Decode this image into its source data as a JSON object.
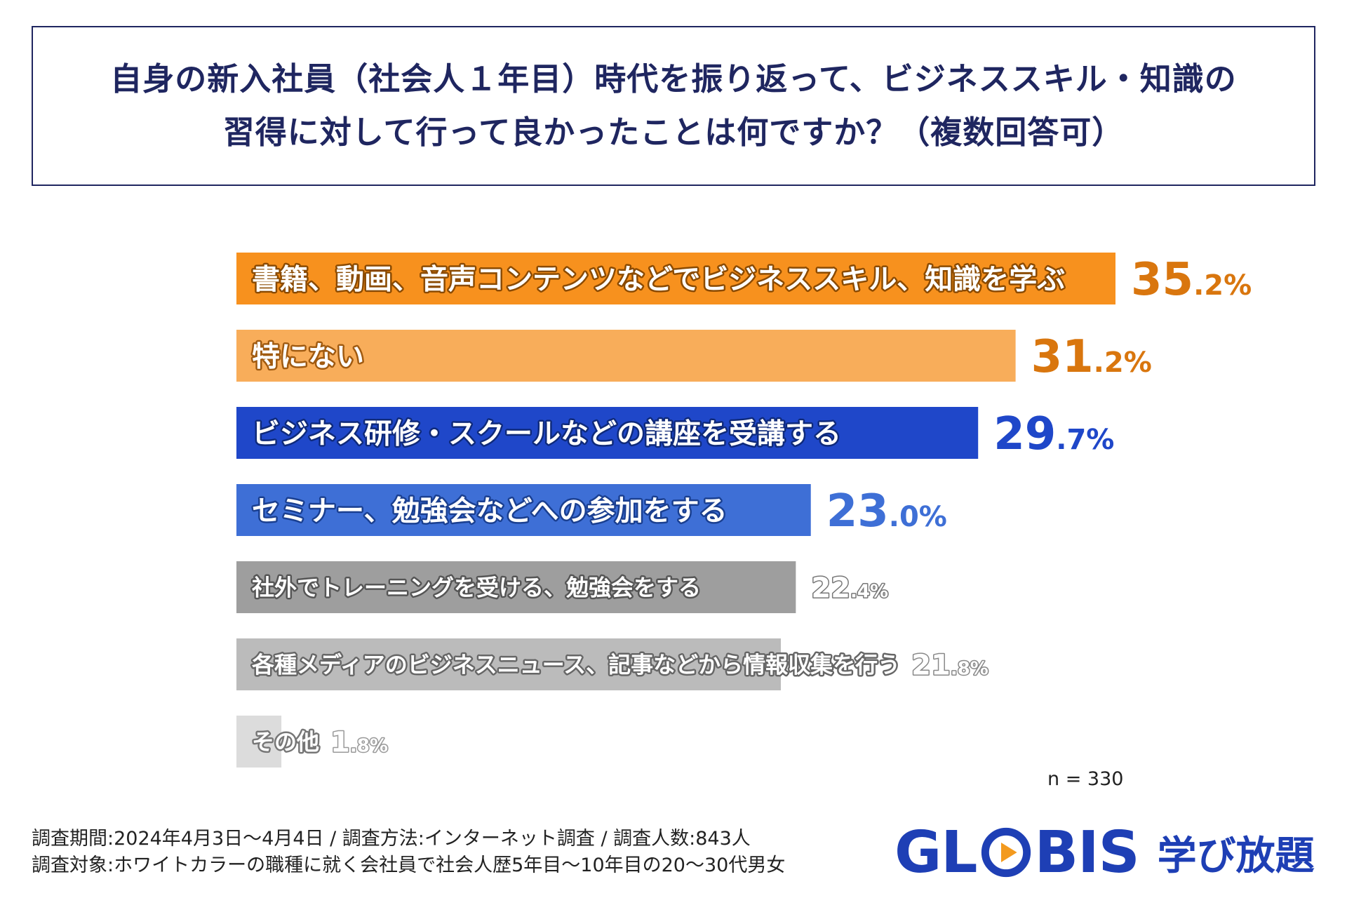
{
  "title": {
    "line1": "自身の新入社員（社会人１年目）時代を振り返って、ビジネススキル・知識の",
    "line2": "習得に対して行って良かったことは何ですか？（複数回答可）"
  },
  "chart_data": {
    "type": "bar",
    "orientation": "horizontal",
    "unit": "%",
    "xlim": [
      0,
      35.2
    ],
    "categories": [
      "書籍、動画、音声コンテンツなどでビジネススキル、知識を学ぶ",
      "特にない",
      "ビジネス研修・スクールなどの講座を受講する",
      "セミナー、勉強会などへの参加をする",
      "社外でトレーニングを受ける、勉強会をする",
      "各種メディアのビジネスニュース、記事などから情報収集を行う",
      "その他"
    ],
    "values": [
      35.2,
      31.2,
      29.7,
      23.0,
      22.4,
      21.8,
      1.8
    ],
    "value_labels": [
      {
        "int": "35",
        "dec": ".2%"
      },
      {
        "int": "31",
        "dec": ".2%"
      },
      {
        "int": "29",
        "dec": ".7%"
      },
      {
        "int": "23",
        "dec": ".0%"
      },
      {
        "int": "22",
        "dec": ".4%"
      },
      {
        "int": "21",
        "dec": ".8%"
      },
      {
        "int": "1",
        "dec": ".8%"
      }
    ],
    "bar_colors": [
      "#f7911e",
      "#f8ad5a",
      "#1f47c9",
      "#3e6fd6",
      "#9e9e9e",
      "#bbbbbb",
      "#dcdcdc"
    ],
    "value_colors": [
      "#d9760e",
      "#d9760e",
      "#1f47c9",
      "#3e6fd6",
      "#bdbdbd",
      "#c9c9c9",
      "#d0d0d0"
    ],
    "n_label": "n = 330"
  },
  "footer": {
    "line1": "調査期間:2024年4月3日〜4月4日 / 調査方法:インターネット調査 / 調査人数:843人",
    "line2": "調査対象:ホワイトカラーの職種に就く会社員で社会人歴5年目〜10年目の20〜30代男女"
  },
  "logo": {
    "brand_left": "GL",
    "brand_right": "BIS",
    "sub": "学び放題",
    "brand_color": "#1e3fb5",
    "accent_color": "#f39a1e"
  }
}
